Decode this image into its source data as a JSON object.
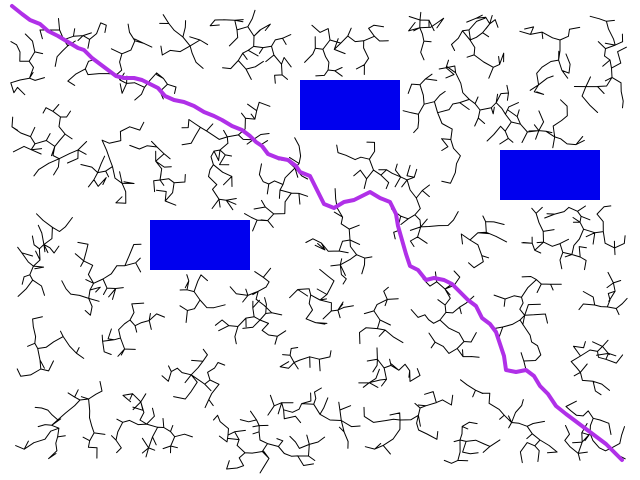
{
  "scene": {
    "background_color": "#ffffff",
    "tree_color": "#000000",
    "path_color": "#b030e8",
    "obstacle_color": "#0000ee"
  },
  "obstacles": [
    {
      "id": "obs-1",
      "shape": "rectangle"
    },
    {
      "id": "obs-2",
      "shape": "rectangle"
    },
    {
      "id": "obs-3",
      "shape": "rectangle"
    }
  ],
  "visible_text": []
}
